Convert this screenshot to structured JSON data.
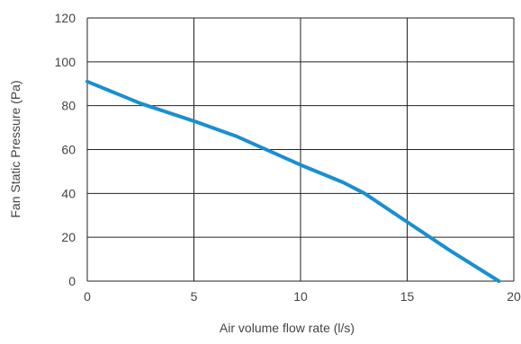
{
  "chart_data": {
    "type": "line",
    "title": "",
    "xlabel": "Air volume flow rate (l/s)",
    "ylabel": "Fan Static Pressure (Pa)",
    "xlim": [
      0,
      20
    ],
    "ylim": [
      0,
      120
    ],
    "x_ticks": [
      0,
      5,
      10,
      15,
      20
    ],
    "y_ticks": [
      0,
      20,
      40,
      60,
      80,
      100,
      120
    ],
    "grid": true,
    "legend": "none",
    "series": [
      {
        "color": "#1a8fd0",
        "x": [
          0,
          2.5,
          5,
          7,
          10,
          12,
          13,
          15,
          17,
          19.3
        ],
        "y": [
          91,
          81,
          73,
          66,
          53,
          45,
          40,
          27,
          14,
          0
        ]
      }
    ]
  }
}
